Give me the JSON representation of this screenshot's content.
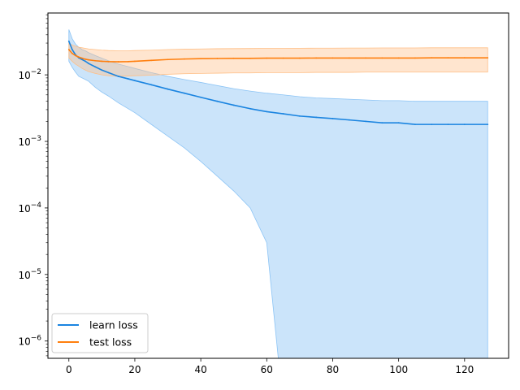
{
  "chart_data": {
    "type": "line",
    "title": "",
    "xlabel": "",
    "ylabel": "",
    "xlim": [
      -6.35,
      133.35
    ],
    "ylim": [
      5.5e-07,
      0.085
    ],
    "yscale": "log",
    "grid": false,
    "legend_position": "lower-left",
    "x_ticks": [
      0,
      20,
      40,
      60,
      80,
      100,
      120
    ],
    "x_tick_labels": [
      "0",
      "20",
      "40",
      "60",
      "80",
      "100",
      "120"
    ],
    "y_ticks": [
      1e-06,
      1e-05,
      0.0001,
      0.001,
      0.01
    ],
    "y_tick_labels": [
      {
        "base": "10",
        "exp": "−6"
      },
      {
        "base": "10",
        "exp": "−5"
      },
      {
        "base": "10",
        "exp": "−4"
      },
      {
        "base": "10",
        "exp": "−3"
      },
      {
        "base": "10",
        "exp": "−2"
      }
    ],
    "series": [
      {
        "name": "learn loss",
        "color": "#1a84e0",
        "band_color": "#8cc4f5",
        "x": [
          0,
          1,
          2,
          3,
          4,
          5,
          6,
          8,
          10,
          12,
          15,
          18,
          20,
          25,
          30,
          35,
          40,
          45,
          50,
          55,
          60,
          65,
          70,
          75,
          80,
          85,
          90,
          95,
          100,
          105,
          110,
          115,
          120,
          127
        ],
        "values": [
          0.032,
          0.024,
          0.02,
          0.018,
          0.017,
          0.016,
          0.0148,
          0.0132,
          0.0118,
          0.0108,
          0.0095,
          0.0087,
          0.0082,
          0.0071,
          0.0061,
          0.0053,
          0.0046,
          0.004,
          0.0035,
          0.0031,
          0.0028,
          0.0026,
          0.0024,
          0.0023,
          0.0022,
          0.0021,
          0.002,
          0.0019,
          0.0019,
          0.0018,
          0.0018,
          0.0018,
          0.0018,
          0.0018
        ],
        "upper": [
          0.048,
          0.035,
          0.029,
          0.026,
          0.024,
          0.023,
          0.0215,
          0.0195,
          0.0178,
          0.0163,
          0.0145,
          0.0133,
          0.0125,
          0.0108,
          0.0095,
          0.0085,
          0.0077,
          0.0069,
          0.0062,
          0.0057,
          0.0053,
          0.005,
          0.0047,
          0.0045,
          0.0044,
          0.0043,
          0.0042,
          0.0041,
          0.0041,
          0.004,
          0.004,
          0.004,
          0.004,
          0.004
        ],
        "lower": [
          0.016,
          0.013,
          0.011,
          0.0095,
          0.009,
          0.0085,
          0.008,
          0.0065,
          0.0055,
          0.0048,
          0.0038,
          0.0031,
          0.0027,
          0.0018,
          0.0012,
          0.0008,
          0.0005,
          0.0003,
          0.00018,
          0.0001,
          3e-05,
          1e-07,
          1e-07,
          1e-07,
          1e-07,
          1e-07,
          1e-07,
          1e-07,
          1e-07,
          1e-07,
          1e-07,
          1e-07,
          1e-07,
          1e-07
        ]
      },
      {
        "name": "test loss",
        "color": "#ff7f0e",
        "band_color": "#ffbf86",
        "x": [
          0,
          1,
          2,
          3,
          4,
          5,
          6,
          8,
          10,
          12,
          15,
          18,
          20,
          25,
          30,
          35,
          40,
          45,
          50,
          55,
          60,
          65,
          70,
          75,
          80,
          85,
          90,
          95,
          100,
          105,
          110,
          115,
          120,
          127
        ],
        "values": [
          0.024,
          0.021,
          0.0195,
          0.0185,
          0.0178,
          0.0172,
          0.0168,
          0.0163,
          0.016,
          0.0158,
          0.0157,
          0.0158,
          0.016,
          0.0165,
          0.017,
          0.0173,
          0.0175,
          0.0176,
          0.0177,
          0.0177,
          0.0178,
          0.0178,
          0.0178,
          0.0179,
          0.0179,
          0.0179,
          0.0179,
          0.0179,
          0.0179,
          0.0179,
          0.018,
          0.018,
          0.018,
          0.018
        ],
        "upper": [
          0.03,
          0.028,
          0.027,
          0.026,
          0.0255,
          0.025,
          0.0245,
          0.024,
          0.0235,
          0.0232,
          0.023,
          0.023,
          0.0232,
          0.0235,
          0.024,
          0.0243,
          0.0245,
          0.0247,
          0.0248,
          0.0249,
          0.025,
          0.025,
          0.0251,
          0.0252,
          0.0252,
          0.0253,
          0.0253,
          0.0254,
          0.0254,
          0.0254,
          0.0255,
          0.0255,
          0.0255,
          0.0255
        ],
        "lower": [
          0.018,
          0.016,
          0.0145,
          0.0135,
          0.0125,
          0.0118,
          0.0112,
          0.0105,
          0.01,
          0.0097,
          0.0095,
          0.0096,
          0.0097,
          0.0099,
          0.0102,
          0.0104,
          0.0105,
          0.0106,
          0.0107,
          0.0107,
          0.0108,
          0.0108,
          0.0108,
          0.0109,
          0.0109,
          0.0109,
          0.011,
          0.011,
          0.011,
          0.011,
          0.011,
          0.011,
          0.011,
          0.011
        ]
      }
    ]
  }
}
